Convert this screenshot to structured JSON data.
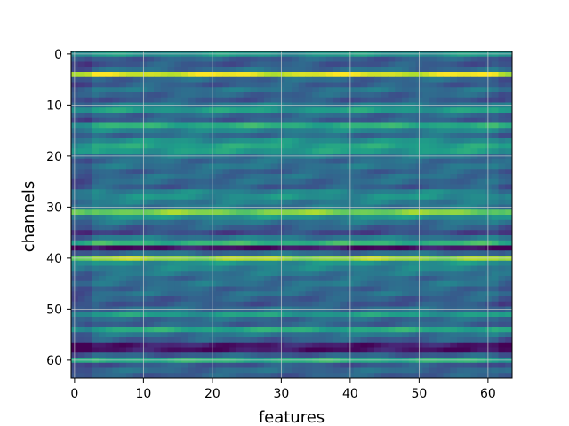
{
  "chart_data": {
    "type": "heatmap",
    "title": "",
    "xlabel": "features",
    "ylabel": "channels",
    "xlim": [
      0,
      63
    ],
    "ylim": [
      63,
      0
    ],
    "xticks": [
      0,
      10,
      20,
      30,
      40,
      50,
      60
    ],
    "yticks": [
      0,
      10,
      20,
      30,
      40,
      50,
      60
    ],
    "grid": true,
    "colormap": "viridis",
    "value_range": [
      0,
      1
    ],
    "n_features": 64,
    "n_channels": 64,
    "channel_levels": [
      0.52,
      0.3,
      0.28,
      0.35,
      0.95,
      0.33,
      0.3,
      0.38,
      0.32,
      0.28,
      0.42,
      0.55,
      0.33,
      0.3,
      0.62,
      0.45,
      0.35,
      0.5,
      0.58,
      0.55,
      0.4,
      0.35,
      0.38,
      0.32,
      0.36,
      0.34,
      0.3,
      0.45,
      0.5,
      0.42,
      0.4,
      0.8,
      0.5,
      0.38,
      0.3,
      0.22,
      0.4,
      0.65,
      0.05,
      0.35,
      0.85,
      0.5,
      0.45,
      0.4,
      0.35,
      0.38,
      0.33,
      0.36,
      0.3,
      0.28,
      0.36,
      0.55,
      0.34,
      0.32,
      0.6,
      0.38,
      0.3,
      0.08,
      0.05,
      0.3,
      0.62,
      0.28,
      0.34,
      0.3
    ]
  }
}
